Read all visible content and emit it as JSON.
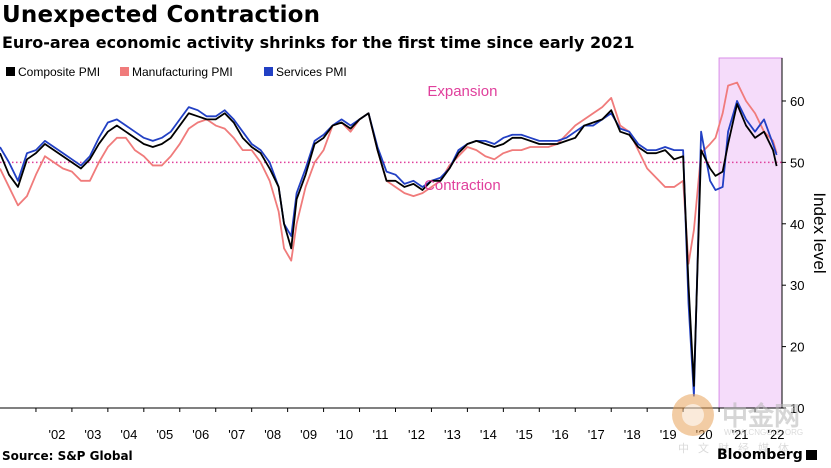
{
  "title": "Unexpected Contraction",
  "subtitle": "Euro-area economic activity shrinks for the first time since early 2021",
  "source": "Source: S&P Global",
  "brand": "Bloomberg",
  "watermark": {
    "name": "中金网",
    "url": "WWW.CNGOLD.ORG",
    "tagline": "中文财经媒体"
  },
  "chart_data": {
    "type": "line",
    "title": "Unexpected Contraction",
    "subtitle": "Euro-area economic activity shrinks for the first time since early 2021",
    "ylabel": "Index level",
    "ylim": [
      10,
      67
    ],
    "yticks": [
      10,
      20,
      30,
      40,
      50,
      60
    ],
    "xlim": [
      2001.0,
      2022.75
    ],
    "xticks": [
      {
        "x": 2002.0,
        "label": "'02"
      },
      {
        "x": 2003.0,
        "label": "'03"
      },
      {
        "x": 2004.0,
        "label": "'04"
      },
      {
        "x": 2005.0,
        "label": "'05"
      },
      {
        "x": 2006.0,
        "label": "'06"
      },
      {
        "x": 2007.0,
        "label": "'07"
      },
      {
        "x": 2008.0,
        "label": "'08"
      },
      {
        "x": 2009.0,
        "label": "'09"
      },
      {
        "x": 2010.0,
        "label": "'10"
      },
      {
        "x": 2011.0,
        "label": "'11"
      },
      {
        "x": 2012.0,
        "label": "'12"
      },
      {
        "x": 2013.0,
        "label": "'13"
      },
      {
        "x": 2014.0,
        "label": "'14"
      },
      {
        "x": 2015.0,
        "label": "'15"
      },
      {
        "x": 2016.0,
        "label": "'16"
      },
      {
        "x": 2017.0,
        "label": "'17"
      },
      {
        "x": 2018.0,
        "label": "'18"
      },
      {
        "x": 2019.0,
        "label": "'19"
      },
      {
        "x": 2020.0,
        "label": "'20"
      },
      {
        "x": 2021.0,
        "label": "'21"
      },
      {
        "x": 2022.0,
        "label": "'22"
      }
    ],
    "reference_line": {
      "y": 50,
      "style": "dotted",
      "color": "#e0409c"
    },
    "annotations": [
      {
        "text": "Expansion",
        "x": 2014.0,
        "y": 58,
        "color": "#e0409c"
      },
      {
        "text": "Contraction",
        "x": 2014.0,
        "y": 47,
        "color": "#e0409c"
      }
    ],
    "shaded_region": {
      "x0": 2021.0,
      "x1": 2022.75,
      "color": "#f5dcfa"
    },
    "grid": false,
    "legend_placement": "top-left",
    "series": [
      {
        "name": "Composite PMI",
        "color": "#000000",
        "x": [
          2001.0,
          2001.25,
          2001.5,
          2001.75,
          2002.0,
          2002.25,
          2002.5,
          2002.75,
          2003.0,
          2003.25,
          2003.5,
          2003.75,
          2004.0,
          2004.25,
          2004.5,
          2004.75,
          2005.0,
          2005.25,
          2005.5,
          2005.75,
          2006.0,
          2006.25,
          2006.5,
          2006.75,
          2007.0,
          2007.25,
          2007.5,
          2007.75,
          2008.0,
          2008.25,
          2008.5,
          2008.75,
          2008.9,
          2009.1,
          2009.25,
          2009.5,
          2009.75,
          2010.0,
          2010.25,
          2010.5,
          2010.75,
          2011.0,
          2011.25,
          2011.5,
          2011.75,
          2012.0,
          2012.25,
          2012.5,
          2012.75,
          2013.0,
          2013.25,
          2013.5,
          2013.75,
          2014.0,
          2014.25,
          2014.5,
          2014.75,
          2015.0,
          2015.25,
          2015.5,
          2015.75,
          2016.0,
          2016.25,
          2016.5,
          2016.75,
          2017.0,
          2017.25,
          2017.5,
          2017.75,
          2018.0,
          2018.25,
          2018.5,
          2018.75,
          2019.0,
          2019.25,
          2019.5,
          2019.75,
          2020.0,
          2020.15,
          2020.3,
          2020.5,
          2020.75,
          2020.9,
          2021.1,
          2021.25,
          2021.5,
          2021.75,
          2022.0,
          2022.25,
          2022.5,
          2022.6
        ],
        "y": [
          51.5,
          48,
          46,
          50.5,
          51.5,
          53,
          52,
          51,
          50,
          49,
          50.5,
          53,
          55,
          56,
          55,
          54,
          53,
          52.5,
          53,
          54,
          56,
          58,
          57.5,
          57,
          57,
          58,
          56.5,
          54,
          52.5,
          51.5,
          49,
          46,
          40,
          36,
          44,
          48,
          53,
          54,
          56,
          56.5,
          55.5,
          57,
          58,
          52,
          47,
          47,
          46,
          46.5,
          45.5,
          47,
          47,
          49,
          51.5,
          53,
          53.5,
          53,
          52.5,
          53,
          54,
          54,
          53.5,
          53,
          53,
          53,
          53.5,
          54,
          56,
          56.5,
          57,
          58.5,
          55,
          54.5,
          52.5,
          51.5,
          51.5,
          52,
          50.5,
          51,
          30,
          13.6,
          52,
          49,
          47.8,
          48.5,
          53,
          59.5,
          56,
          54,
          55,
          52,
          49.4
        ]
      },
      {
        "name": "Manufacturing PMI",
        "color": "#f07b7b",
        "x": [
          2001.0,
          2001.25,
          2001.5,
          2001.75,
          2002.0,
          2002.25,
          2002.5,
          2002.75,
          2003.0,
          2003.25,
          2003.5,
          2003.75,
          2004.0,
          2004.25,
          2004.5,
          2004.75,
          2005.0,
          2005.25,
          2005.5,
          2005.75,
          2006.0,
          2006.25,
          2006.5,
          2006.75,
          2007.0,
          2007.25,
          2007.5,
          2007.75,
          2008.0,
          2008.25,
          2008.5,
          2008.75,
          2008.9,
          2009.1,
          2009.25,
          2009.5,
          2009.75,
          2010.0,
          2010.25,
          2010.5,
          2010.75,
          2011.0,
          2011.25,
          2011.5,
          2011.75,
          2012.0,
          2012.25,
          2012.5,
          2012.75,
          2013.0,
          2013.25,
          2013.5,
          2013.75,
          2014.0,
          2014.25,
          2014.5,
          2014.75,
          2015.0,
          2015.25,
          2015.5,
          2015.75,
          2016.0,
          2016.25,
          2016.5,
          2016.75,
          2017.0,
          2017.25,
          2017.5,
          2017.75,
          2018.0,
          2018.25,
          2018.5,
          2018.75,
          2019.0,
          2019.25,
          2019.5,
          2019.75,
          2020.0,
          2020.15,
          2020.3,
          2020.5,
          2020.75,
          2020.9,
          2021.1,
          2021.25,
          2021.5,
          2021.75,
          2022.0,
          2022.25,
          2022.5,
          2022.6
        ],
        "y": [
          49,
          46,
          43,
          44.5,
          48,
          51,
          50,
          49,
          48.5,
          47,
          47,
          50,
          52.5,
          54,
          54,
          52,
          51,
          49.5,
          49.5,
          51,
          53,
          55.5,
          56.5,
          57,
          56,
          55.5,
          54,
          52,
          52,
          50,
          47,
          42,
          36,
          34,
          40,
          46,
          50,
          52,
          56,
          56.5,
          55,
          57,
          58,
          52,
          47,
          46,
          45,
          44.5,
          45,
          46,
          47,
          49.5,
          51,
          52.5,
          52,
          51,
          50.5,
          51.5,
          52,
          52,
          52.5,
          52.5,
          52.5,
          53,
          54.5,
          56,
          57,
          58,
          59,
          60.5,
          56,
          55,
          52,
          49,
          47.5,
          46,
          46,
          47,
          33.5,
          39,
          51.5,
          53,
          54,
          58,
          62.5,
          63,
          60,
          58,
          55,
          53.5,
          51.5
        ]
      },
      {
        "name": "Services PMI",
        "color": "#2240c4",
        "x": [
          2001.0,
          2001.25,
          2001.5,
          2001.75,
          2002.0,
          2002.25,
          2002.5,
          2002.75,
          2003.0,
          2003.25,
          2003.5,
          2003.75,
          2004.0,
          2004.25,
          2004.5,
          2004.75,
          2005.0,
          2005.25,
          2005.5,
          2005.75,
          2006.0,
          2006.25,
          2006.5,
          2006.75,
          2007.0,
          2007.25,
          2007.5,
          2007.75,
          2008.0,
          2008.25,
          2008.5,
          2008.75,
          2008.9,
          2009.1,
          2009.25,
          2009.5,
          2009.75,
          2010.0,
          2010.25,
          2010.5,
          2010.75,
          2011.0,
          2011.25,
          2011.5,
          2011.75,
          2012.0,
          2012.25,
          2012.5,
          2012.75,
          2013.0,
          2013.25,
          2013.5,
          2013.75,
          2014.0,
          2014.25,
          2014.5,
          2014.75,
          2015.0,
          2015.25,
          2015.5,
          2015.75,
          2016.0,
          2016.25,
          2016.5,
          2016.75,
          2017.0,
          2017.25,
          2017.5,
          2017.75,
          2018.0,
          2018.25,
          2018.5,
          2018.75,
          2019.0,
          2019.25,
          2019.5,
          2019.75,
          2020.0,
          2020.15,
          2020.3,
          2020.5,
          2020.75,
          2020.9,
          2021.1,
          2021.25,
          2021.5,
          2021.75,
          2022.0,
          2022.25,
          2022.5,
          2022.6
        ],
        "y": [
          52.5,
          50,
          47,
          51.5,
          52,
          53.5,
          52.5,
          51.5,
          50.5,
          49.5,
          51,
          54,
          56.5,
          57,
          56,
          55,
          54,
          53.5,
          54,
          55,
          57,
          59,
          58.5,
          57.5,
          57.5,
          58.5,
          57,
          55,
          53,
          52,
          50,
          46,
          40,
          38,
          45,
          49,
          53.5,
          54.5,
          56,
          57,
          56,
          57,
          58,
          52.5,
          48.5,
          48,
          46.5,
          47,
          46,
          47,
          47.5,
          49,
          52,
          53,
          53.5,
          53.5,
          53,
          54,
          54.5,
          54.5,
          54,
          53.5,
          53.5,
          53.5,
          54,
          55,
          56,
          56,
          57,
          58,
          55.5,
          55,
          53,
          52,
          52,
          52.5,
          52,
          52,
          27,
          12,
          55,
          47,
          45.5,
          46,
          55,
          60,
          57,
          55,
          57,
          53,
          51.2
        ]
      }
    ]
  }
}
